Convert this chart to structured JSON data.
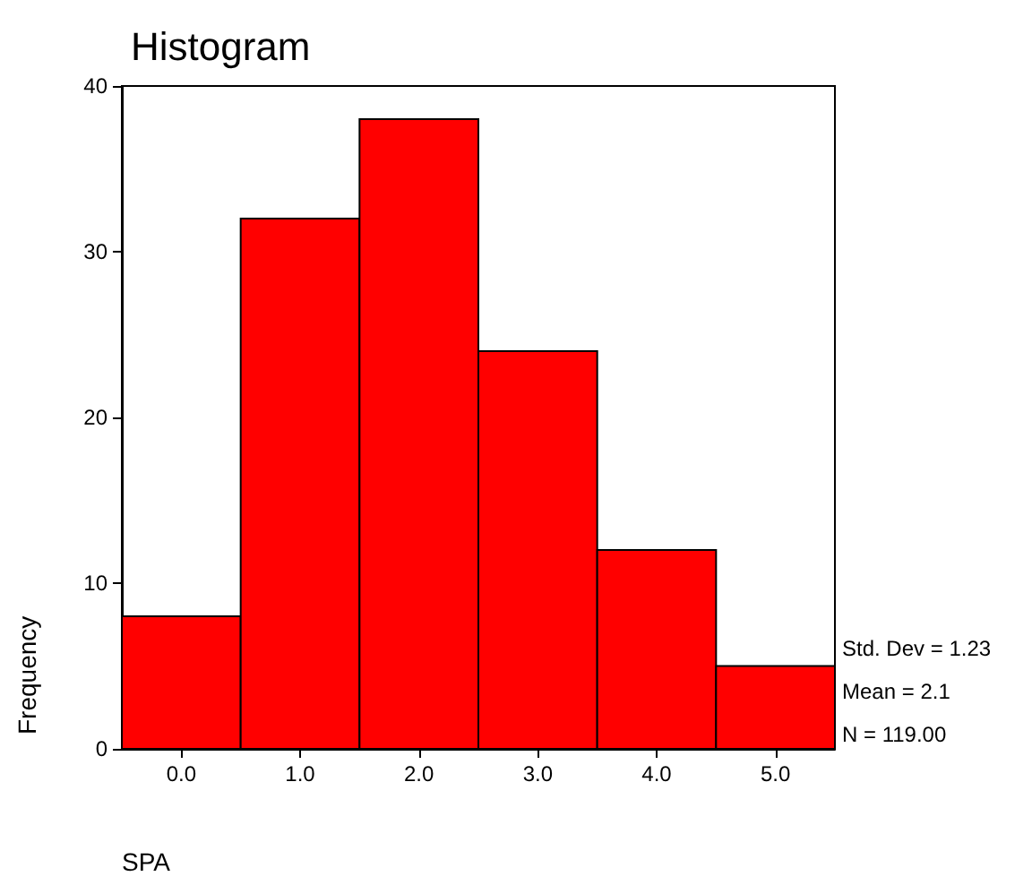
{
  "chart_data": {
    "type": "histogram",
    "title": "Histogram",
    "xlabel": "SPA",
    "ylabel": "Frequency",
    "bins": [
      -0.5,
      0.5,
      1.5,
      2.5,
      3.5,
      4.5,
      5.5
    ],
    "values": [
      8,
      32,
      38,
      24,
      12,
      5
    ],
    "color": "#ff0000",
    "xlim": [
      -0.5,
      5.5
    ],
    "xticks": [
      {
        "value": 0,
        "label": "0.0"
      },
      {
        "value": 1,
        "label": "1.0"
      },
      {
        "value": 2,
        "label": "2.0"
      },
      {
        "value": 3,
        "label": "3.0"
      },
      {
        "value": 4,
        "label": "4.0"
      },
      {
        "value": 5,
        "label": "5.0"
      }
    ],
    "ylim": [
      0,
      40
    ],
    "yticks": [
      0,
      10,
      20,
      30,
      40
    ],
    "grid": false,
    "annotations": [
      "Std. Dev = 1.23",
      "Mean = 2.1",
      "N = 119.00"
    ]
  }
}
